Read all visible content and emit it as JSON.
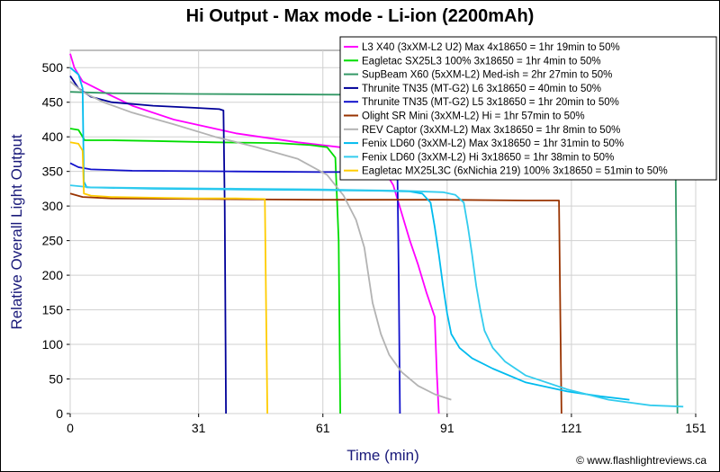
{
  "chart_data": {
    "type": "line",
    "title": "Hi Output - Max mode - Li-ion (2200mAh)",
    "xlabel": "Time (min)",
    "ylabel": "Relative Overall Light Output",
    "xlim": [
      0,
      151
    ],
    "ylim": [
      0,
      525
    ],
    "x_ticks": [
      0,
      31,
      61,
      91,
      121,
      151
    ],
    "y_ticks": [
      0,
      50,
      100,
      150,
      200,
      250,
      300,
      350,
      400,
      450,
      500
    ],
    "grid": true,
    "legend_position": "top-right",
    "credit": "© www.flashlightreviews.ca",
    "series": [
      {
        "name": "L3 X40 (3xXM-L2 U2) Max 4x18650 = 1hr 19min to 50%",
        "color": "#ff00ff",
        "points": [
          [
            0,
            520
          ],
          [
            1,
            500
          ],
          [
            3,
            480
          ],
          [
            8,
            465
          ],
          [
            15,
            445
          ],
          [
            25,
            425
          ],
          [
            40,
            405
          ],
          [
            55,
            392
          ],
          [
            65,
            385
          ],
          [
            70,
            375
          ],
          [
            75,
            360
          ],
          [
            78,
            330
          ],
          [
            80,
            290
          ],
          [
            82,
            250
          ],
          [
            84,
            215
          ],
          [
            86,
            175
          ],
          [
            88,
            140
          ],
          [
            88.5,
            60
          ],
          [
            89,
            0
          ]
        ]
      },
      {
        "name": "Eagletac SX25L3 100% 3x18650 = 1hr 4min to 50%",
        "color": "#00dd00",
        "points": [
          [
            0,
            412
          ],
          [
            2,
            410
          ],
          [
            3.5,
            395
          ],
          [
            5,
            395
          ],
          [
            10,
            395
          ],
          [
            20,
            394
          ],
          [
            35,
            392
          ],
          [
            50,
            391
          ],
          [
            58,
            388
          ],
          [
            62,
            385
          ],
          [
            64,
            370
          ],
          [
            64.8,
            250
          ],
          [
            65.2,
            0
          ]
        ]
      },
      {
        "name": "SupBeam X60 (5xXM-L2) Med-ish = 2hr 27min to 50%",
        "color": "#339966",
        "points": [
          [
            0,
            465
          ],
          [
            10,
            463
          ],
          [
            30,
            462
          ],
          [
            60,
            461
          ],
          [
            100,
            460
          ],
          [
            146,
            459
          ],
          [
            146.3,
            250
          ],
          [
            146.6,
            0
          ]
        ]
      },
      {
        "name": "Thrunite TN35 (MT-G2) L6 3x18650 = 40min to 50%",
        "color": "#000099",
        "points": [
          [
            0,
            488
          ],
          [
            2,
            470
          ],
          [
            5,
            458
          ],
          [
            10,
            450
          ],
          [
            20,
            445
          ],
          [
            30,
            442
          ],
          [
            36,
            440
          ],
          [
            37,
            438
          ],
          [
            37.3,
            300
          ],
          [
            37.6,
            0
          ]
        ]
      },
      {
        "name": "Thrunite TN35 (MT-G2) L5 3x18650 = 1hr 20min to 50%",
        "color": "#1111cc",
        "points": [
          [
            0,
            362
          ],
          [
            2,
            356
          ],
          [
            5,
            353
          ],
          [
            15,
            351
          ],
          [
            40,
            350
          ],
          [
            60,
            349
          ],
          [
            75,
            349
          ],
          [
            79,
            348
          ],
          [
            79.3,
            200
          ],
          [
            79.6,
            0
          ]
        ]
      },
      {
        "name": "Olight SR Mini (3xXM-L2) Hi = 1hr 57min to 50%",
        "color": "#993300",
        "points": [
          [
            0,
            318
          ],
          [
            3,
            313
          ],
          [
            10,
            311
          ],
          [
            30,
            310
          ],
          [
            60,
            309
          ],
          [
            90,
            309
          ],
          [
            110,
            308
          ],
          [
            118,
            308
          ],
          [
            118.3,
            150
          ],
          [
            118.6,
            0
          ]
        ]
      },
      {
        "name": "REV Captor (3xXM-L2) Max 3x18650 = 1hr 8min to 50%",
        "color": "#b3b3b3",
        "points": [
          [
            0,
            480
          ],
          [
            3,
            465
          ],
          [
            8,
            450
          ],
          [
            15,
            435
          ],
          [
            25,
            418
          ],
          [
            35,
            400
          ],
          [
            45,
            385
          ],
          [
            55,
            368
          ],
          [
            62,
            345
          ],
          [
            66,
            315
          ],
          [
            69,
            280
          ],
          [
            71,
            240
          ],
          [
            72,
            200
          ],
          [
            73,
            160
          ],
          [
            75,
            115
          ],
          [
            77,
            85
          ],
          [
            80,
            60
          ],
          [
            84,
            40
          ],
          [
            88,
            28
          ],
          [
            92,
            20
          ]
        ]
      },
      {
        "name": "Fenix LD60 (3xXM-L2) Max 3x18650 = 1hr 31min to 50%",
        "color": "#00bbee",
        "points": [
          [
            0,
            500
          ],
          [
            2,
            490
          ],
          [
            3,
            470
          ],
          [
            3.3,
            335
          ],
          [
            4,
            327
          ],
          [
            20,
            325
          ],
          [
            40,
            324
          ],
          [
            60,
            323
          ],
          [
            75,
            322
          ],
          [
            82,
            321
          ],
          [
            85,
            318
          ],
          [
            87,
            305
          ],
          [
            88,
            270
          ],
          [
            89,
            230
          ],
          [
            90,
            185
          ],
          [
            91,
            145
          ],
          [
            92,
            115
          ],
          [
            94,
            95
          ],
          [
            97,
            80
          ],
          [
            102,
            65
          ],
          [
            110,
            45
          ],
          [
            120,
            32
          ],
          [
            128,
            25
          ],
          [
            135,
            20
          ]
        ]
      },
      {
        "name": "Fenix LD60 (3xXM-L2) Hi 3x18650 = 1hr 38min to 50%",
        "color": "#33ccee",
        "points": [
          [
            0,
            330
          ],
          [
            5,
            327
          ],
          [
            20,
            326
          ],
          [
            40,
            325
          ],
          [
            60,
            324
          ],
          [
            80,
            322
          ],
          [
            90,
            320
          ],
          [
            93,
            316
          ],
          [
            95,
            305
          ],
          [
            96,
            270
          ],
          [
            97,
            230
          ],
          [
            98,
            185
          ],
          [
            99,
            150
          ],
          [
            100,
            120
          ],
          [
            102,
            95
          ],
          [
            105,
            75
          ],
          [
            110,
            55
          ],
          [
            120,
            35
          ],
          [
            130,
            20
          ],
          [
            140,
            12
          ],
          [
            148,
            10
          ]
        ]
      },
      {
        "name": "Eagletac MX25L3C (6xNichia 219) 100% 3x18650 = 51min to 50%",
        "color": "#ffcc00",
        "points": [
          [
            0,
            392
          ],
          [
            2,
            390
          ],
          [
            3,
            380
          ],
          [
            3.3,
            318
          ],
          [
            5,
            315
          ],
          [
            10,
            313
          ],
          [
            20,
            312
          ],
          [
            30,
            311
          ],
          [
            40,
            311
          ],
          [
            47,
            310
          ],
          [
            47.3,
            150
          ],
          [
            47.6,
            0
          ]
        ]
      }
    ]
  }
}
